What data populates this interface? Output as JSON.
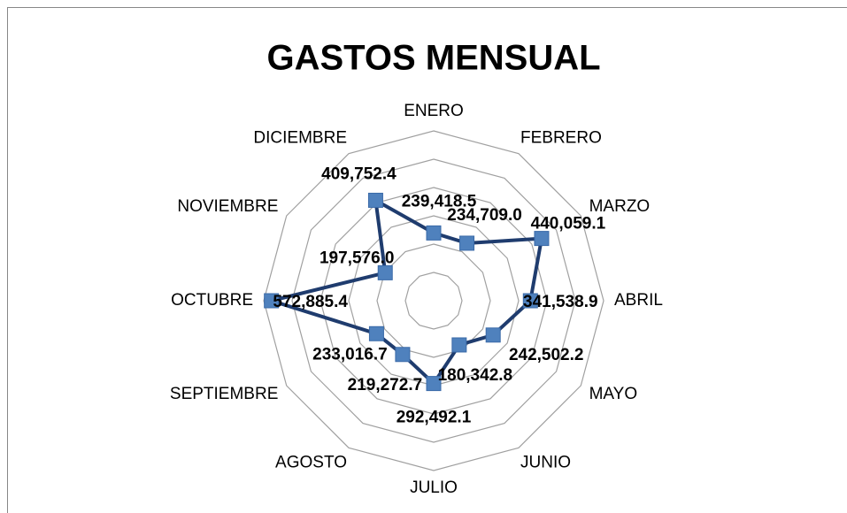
{
  "chart_data": {
    "type": "radar",
    "title": "GASTOS MENSUAL",
    "categories": [
      "ENERO",
      "FEBRERO",
      "MARZO",
      "ABRIL",
      "MAYO",
      "JUNIO",
      "JULIO",
      "AGOSTO",
      "SEPTIEMBRE",
      "OCTUBRE",
      "NOVIEMBRE",
      "DICIEMBRE"
    ],
    "values": [
      239418.5,
      234709.0,
      440059.1,
      341538.9,
      242502.2,
      180342.8,
      292492.1,
      219272.7,
      233016.7,
      572885.4,
      197576.0,
      409752.4
    ],
    "value_labels": [
      "239,418.5",
      "234,709.0",
      "440,059.1",
      "341,538.9",
      "242,502.2",
      "180,342.8",
      "292,492.1",
      "219,272.7",
      "233,016.7",
      "572,885.4",
      "197,576.0",
      "409,752.4"
    ],
    "color": "#4f81bd",
    "line_color": "#1f3c6e",
    "ylim": [
      0,
      600000
    ],
    "yticks": [
      0,
      100000,
      200000,
      300000,
      400000,
      500000,
      600000
    ],
    "grid": true
  }
}
